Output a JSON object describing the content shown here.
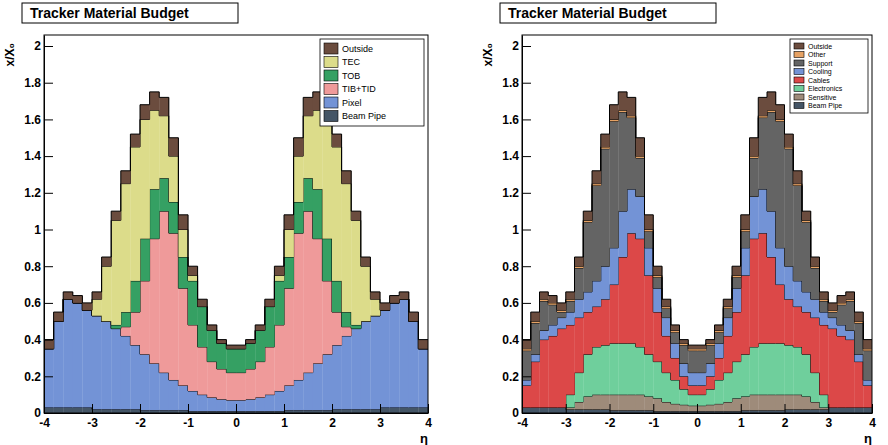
{
  "chart_data": [
    {
      "type": "histogram",
      "title": "Tracker Material Budget",
      "y_label": "x/X₀",
      "x_label": "η",
      "stacked": true,
      "legend": "upper right",
      "bins": [
        -4,
        -3.8,
        -3.6,
        -3.4,
        -3.2,
        -3,
        -2.8,
        -2.6,
        -2.4,
        -2.2,
        -2,
        -1.8,
        -1.6,
        -1.4,
        -1.2,
        -1,
        -0.8,
        -0.6,
        -0.4,
        -0.2,
        0,
        0.2,
        0.4,
        0.6,
        0.8,
        1,
        1.2,
        1.4,
        1.6,
        1.8,
        2,
        2.2,
        2.4,
        2.6,
        2.8,
        3,
        3.2,
        3.4,
        3.6,
        3.8,
        4
      ],
      "xlim": [
        -4,
        4
      ],
      "xticks": [
        -4,
        -3,
        -2,
        -1,
        0,
        1,
        2,
        3,
        4
      ],
      "ylim": [
        0,
        2.06
      ],
      "yticks": [
        0,
        0.2,
        0.4,
        0.6,
        0.8,
        1,
        1.2,
        1.4,
        1.6,
        1.8,
        2
      ],
      "series": [
        {
          "name": "Beam Pipe",
          "color": "#445566",
          "values": [
            0.03,
            0.03,
            0.03,
            0.03,
            0.03,
            0.02,
            0.02,
            0.02,
            0.02,
            0.02,
            0.015,
            0.015,
            0.015,
            0.015,
            0.015,
            0.01,
            0.01,
            0.01,
            0.01,
            0.01,
            0.01,
            0.01,
            0.01,
            0.01,
            0.01,
            0.015,
            0.015,
            0.015,
            0.015,
            0.015,
            0.02,
            0.02,
            0.02,
            0.02,
            0.02,
            0.03,
            0.03,
            0.03,
            0.03,
            0.03
          ]
        },
        {
          "name": "Pixel",
          "color": "#7393d6",
          "values": [
            0.32,
            0.47,
            0.59,
            0.57,
            0.53,
            0.51,
            0.48,
            0.44,
            0.4,
            0.35,
            0.305,
            0.255,
            0.205,
            0.165,
            0.135,
            0.11,
            0.09,
            0.075,
            0.065,
            0.06,
            0.06,
            0.065,
            0.075,
            0.09,
            0.11,
            0.135,
            0.165,
            0.205,
            0.255,
            0.305,
            0.35,
            0.4,
            0.44,
            0.48,
            0.51,
            0.53,
            0.57,
            0.59,
            0.47,
            0.32
          ]
        },
        {
          "name": "TIB+TID",
          "color": "#ef9a9a",
          "values": [
            0,
            0,
            0,
            0,
            0,
            0,
            0,
            0,
            0.05,
            0.18,
            0.4,
            0.68,
            0.88,
            0.8,
            0.53,
            0.36,
            0.26,
            0.195,
            0.165,
            0.15,
            0.15,
            0.165,
            0.195,
            0.26,
            0.36,
            0.53,
            0.8,
            0.88,
            0.68,
            0.4,
            0.18,
            0.05,
            0,
            0,
            0,
            0,
            0,
            0,
            0,
            0
          ]
        },
        {
          "name": "TOB",
          "color": "#35a063",
          "values": [
            0,
            0,
            0,
            0,
            0,
            0,
            0,
            0.02,
            0.08,
            0.17,
            0.23,
            0.27,
            0.18,
            0.17,
            0.17,
            0.24,
            0.22,
            0.17,
            0.14,
            0.13,
            0.13,
            0.14,
            0.17,
            0.22,
            0.24,
            0.17,
            0.17,
            0.18,
            0.27,
            0.23,
            0.17,
            0.08,
            0.02,
            0,
            0,
            0,
            0,
            0,
            0,
            0
          ]
        },
        {
          "name": "TEC",
          "color": "#dcdc8a",
          "values": [
            0,
            0,
            0,
            0,
            0,
            0.09,
            0.3,
            0.57,
            0.7,
            0.73,
            0.65,
            0.43,
            0.34,
            0.25,
            0.15,
            0.03,
            0,
            0,
            0,
            0,
            0,
            0,
            0,
            0,
            0.03,
            0.15,
            0.25,
            0.34,
            0.43,
            0.65,
            0.73,
            0.7,
            0.57,
            0.3,
            0.09,
            0,
            0,
            0,
            0,
            0
          ]
        },
        {
          "name": "Outside",
          "color": "#6b4c3e",
          "values": [
            0.05,
            0.05,
            0.04,
            0.04,
            0.04,
            0.04,
            0.05,
            0.05,
            0.07,
            0.07,
            0.08,
            0.1,
            0.1,
            0.1,
            0.08,
            0.05,
            0.04,
            0.03,
            0.02,
            0.02,
            0.02,
            0.02,
            0.03,
            0.04,
            0.05,
            0.08,
            0.1,
            0.1,
            0.1,
            0.08,
            0.07,
            0.07,
            0.05,
            0.05,
            0.04,
            0.04,
            0.04,
            0.04,
            0.05,
            0.05
          ]
        }
      ]
    },
    {
      "type": "histogram",
      "title": "Tracker Material Budget",
      "y_label": "x/X₀",
      "x_label": "η",
      "stacked": true,
      "legend": "upper right",
      "bins": [
        -4,
        -3.8,
        -3.6,
        -3.4,
        -3.2,
        -3,
        -2.8,
        -2.6,
        -2.4,
        -2.2,
        -2,
        -1.8,
        -1.6,
        -1.4,
        -1.2,
        -1,
        -0.8,
        -0.6,
        -0.4,
        -0.2,
        0,
        0.2,
        0.4,
        0.6,
        0.8,
        1,
        1.2,
        1.4,
        1.6,
        1.8,
        2,
        2.2,
        2.4,
        2.6,
        2.8,
        3,
        3.2,
        3.4,
        3.6,
        3.8,
        4
      ],
      "xlim": [
        -4,
        4
      ],
      "xticks": [
        -4,
        -3,
        -2,
        -1,
        0,
        1,
        2,
        3,
        4
      ],
      "ylim": [
        0,
        2.06
      ],
      "yticks": [
        0,
        0.2,
        0.4,
        0.6,
        0.8,
        1,
        1.2,
        1.4,
        1.6,
        1.8,
        2
      ],
      "series": [
        {
          "name": "Beam Pipe",
          "color": "#445566",
          "values": [
            0.03,
            0.03,
            0.03,
            0.03,
            0.03,
            0.02,
            0.02,
            0.02,
            0.02,
            0.02,
            0.015,
            0.015,
            0.015,
            0.015,
            0.015,
            0.01,
            0.01,
            0.01,
            0.01,
            0.01,
            0.01,
            0.01,
            0.01,
            0.01,
            0.01,
            0.015,
            0.015,
            0.015,
            0.015,
            0.015,
            0.02,
            0.02,
            0.02,
            0.02,
            0.02,
            0.03,
            0.03,
            0.03,
            0.03,
            0.03
          ]
        },
        {
          "name": "Sensitive",
          "color": "#9e8b7a",
          "values": [
            0,
            0,
            0,
            0,
            0,
            0.01,
            0.04,
            0.07,
            0.08,
            0.08,
            0.085,
            0.085,
            0.085,
            0.085,
            0.075,
            0.07,
            0.05,
            0.04,
            0.035,
            0.03,
            0.03,
            0.035,
            0.04,
            0.05,
            0.07,
            0.075,
            0.085,
            0.085,
            0.085,
            0.085,
            0.08,
            0.08,
            0.07,
            0.04,
            0.01,
            0,
            0,
            0,
            0,
            0
          ]
        },
        {
          "name": "Electronics",
          "color": "#6fcf9c",
          "values": [
            0,
            0,
            0,
            0,
            0,
            0.07,
            0.16,
            0.23,
            0.26,
            0.27,
            0.28,
            0.28,
            0.28,
            0.26,
            0.23,
            0.2,
            0.16,
            0.13,
            0.085,
            0.06,
            0.06,
            0.085,
            0.13,
            0.16,
            0.2,
            0.23,
            0.26,
            0.28,
            0.28,
            0.28,
            0.27,
            0.26,
            0.23,
            0.16,
            0.07,
            0,
            0,
            0,
            0,
            0
          ]
        },
        {
          "name": "Cables",
          "color": "#dc4848",
          "values": [
            0.12,
            0.25,
            0.37,
            0.39,
            0.43,
            0.38,
            0.3,
            0.23,
            0.22,
            0.25,
            0.32,
            0.47,
            0.6,
            0.59,
            0.43,
            0.27,
            0.2,
            0.12,
            0.07,
            0.05,
            0.05,
            0.07,
            0.12,
            0.2,
            0.27,
            0.43,
            0.59,
            0.6,
            0.47,
            0.32,
            0.25,
            0.22,
            0.23,
            0.3,
            0.38,
            0.43,
            0.39,
            0.37,
            0.25,
            0.12
          ]
        },
        {
          "name": "Cooling",
          "color": "#7393d6",
          "values": [
            0.03,
            0.04,
            0.05,
            0.06,
            0.06,
            0.07,
            0.1,
            0.11,
            0.14,
            0.18,
            0.2,
            0.25,
            0.24,
            0.23,
            0.15,
            0.13,
            0.1,
            0.08,
            0.07,
            0.07,
            0.07,
            0.07,
            0.08,
            0.1,
            0.13,
            0.15,
            0.23,
            0.24,
            0.25,
            0.2,
            0.18,
            0.14,
            0.11,
            0.1,
            0.07,
            0.06,
            0.06,
            0.05,
            0.04,
            0.03
          ]
        },
        {
          "name": "Support",
          "color": "#646464",
          "values": [
            0.16,
            0.17,
            0.16,
            0.11,
            0.03,
            0.06,
            0.17,
            0.38,
            0.52,
            0.64,
            0.69,
            0.54,
            0.39,
            0.21,
            0.09,
            0.06,
            0.05,
            0.06,
            0.1,
            0.12,
            0.12,
            0.1,
            0.06,
            0.05,
            0.06,
            0.09,
            0.21,
            0.39,
            0.54,
            0.69,
            0.64,
            0.52,
            0.38,
            0.17,
            0.06,
            0.03,
            0.11,
            0.16,
            0.17,
            0.16
          ]
        },
        {
          "name": "Other",
          "color": "#e6a264",
          "values": [
            0.01,
            0.01,
            0.01,
            0.01,
            0.01,
            0.01,
            0.01,
            0.01,
            0.01,
            0.01,
            0.01,
            0.01,
            0.01,
            0.01,
            0.01,
            0.01,
            0.01,
            0.01,
            0.01,
            0.01,
            0.01,
            0.01,
            0.01,
            0.01,
            0.01,
            0.01,
            0.01,
            0.01,
            0.01,
            0.01,
            0.01,
            0.01,
            0.01,
            0.01,
            0.01,
            0.01,
            0.01,
            0.01,
            0.01,
            0.01
          ]
        },
        {
          "name": "Outside",
          "color": "#6b4c3e",
          "values": [
            0.05,
            0.05,
            0.04,
            0.04,
            0.04,
            0.04,
            0.05,
            0.05,
            0.07,
            0.07,
            0.08,
            0.1,
            0.1,
            0.1,
            0.08,
            0.05,
            0.04,
            0.03,
            0.02,
            0.02,
            0.02,
            0.02,
            0.03,
            0.04,
            0.05,
            0.08,
            0.1,
            0.1,
            0.1,
            0.08,
            0.07,
            0.07,
            0.05,
            0.05,
            0.04,
            0.04,
            0.04,
            0.04,
            0.05,
            0.05
          ]
        }
      ]
    }
  ]
}
